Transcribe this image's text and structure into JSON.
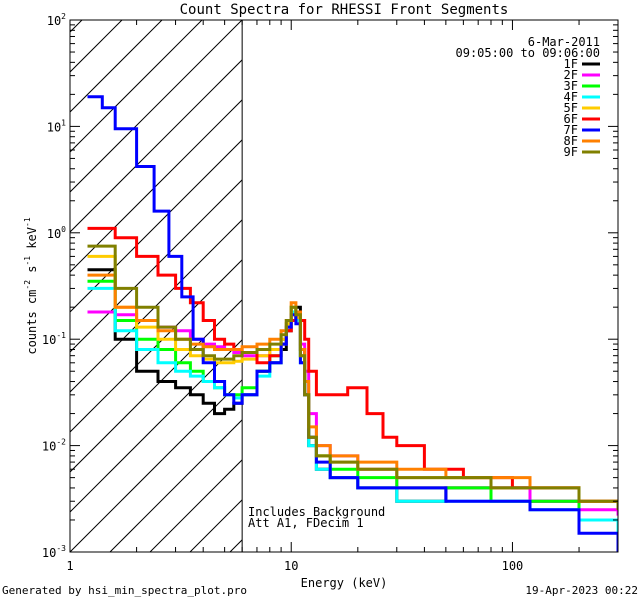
{
  "chart_data": {
    "type": "line",
    "title": "Count Spectra for RHESSI Front Segments",
    "xlabel": "Energy (keV)",
    "ylabel_parts": [
      "counts cm",
      "-2",
      " s",
      "-1",
      " keV",
      "-1"
    ],
    "xscale": "log",
    "yscale": "log",
    "xlim": [
      1,
      300
    ],
    "ylim": [
      0.001,
      100
    ],
    "x_tick_labels": [
      {
        "v": 1,
        "label": "1"
      },
      {
        "v": 10,
        "label": "10"
      },
      {
        "v": 100,
        "label": "100"
      }
    ],
    "y_tick_labels": [
      {
        "v": 0.001,
        "base": "10",
        "exp": "-3"
      },
      {
        "v": 0.01,
        "base": "10",
        "exp": "-2"
      },
      {
        "v": 0.1,
        "base": "10",
        "exp": "-1"
      },
      {
        "v": 1,
        "base": "10",
        "exp": "0"
      },
      {
        "v": 10,
        "base": "10",
        "exp": "1"
      },
      {
        "v": 100,
        "base": "10",
        "exp": "2"
      }
    ],
    "hatched_region": {
      "x_min": 1,
      "x_max": 6
    },
    "date": "6-Mar-2011",
    "time_range": "09:05:00 to 09:06:00",
    "annotation_lines": [
      "Includes Background",
      "Att A1, FDecim 1"
    ],
    "legend_position": "top-right",
    "series": [
      {
        "name": "1F",
        "color": "#000000",
        "x": [
          1.2,
          1.6,
          2.0,
          2.5,
          3.0,
          3.5,
          4.0,
          4.5,
          5.0,
          5.5,
          6.0,
          7.0,
          8.0,
          9.0,
          9.5,
          10.0,
          10.5,
          11.0,
          11.5,
          12.0,
          13,
          15,
          20,
          30,
          50,
          80,
          120,
          200,
          300
        ],
        "values": [
          0.45,
          0.1,
          0.05,
          0.04,
          0.035,
          0.03,
          0.025,
          0.02,
          0.022,
          0.025,
          0.03,
          0.05,
          0.06,
          0.08,
          0.12,
          0.15,
          0.2,
          0.08,
          0.03,
          0.01,
          0.006,
          0.005,
          0.004,
          0.003,
          0.004,
          0.004,
          0.003,
          0.002,
          0.0015
        ]
      },
      {
        "name": "2F",
        "color": "#ff00ff",
        "x": [
          1.2,
          1.6,
          2.0,
          2.5,
          3.0,
          3.5,
          4.0,
          4.5,
          5.0,
          5.5,
          6.0,
          7.0,
          8.0,
          9.0,
          9.5,
          10.0,
          10.5,
          11.0,
          11.5,
          12.0,
          13,
          15,
          20,
          30,
          50,
          80,
          120,
          200,
          300
        ],
        "values": [
          0.18,
          0.17,
          0.15,
          0.13,
          0.12,
          0.1,
          0.09,
          0.085,
          0.08,
          0.075,
          0.07,
          0.07,
          0.08,
          0.1,
          0.13,
          0.17,
          0.18,
          0.09,
          0.05,
          0.02,
          0.01,
          0.008,
          0.006,
          0.004,
          0.004,
          0.004,
          0.003,
          0.0025,
          0.0022
        ]
      },
      {
        "name": "3F",
        "color": "#00ff00",
        "x": [
          1.2,
          1.6,
          2.0,
          2.5,
          3.0,
          3.5,
          4.0,
          4.5,
          5.0,
          5.5,
          6.0,
          7.0,
          8.0,
          9.0,
          9.5,
          10.0,
          10.5,
          11.0,
          11.5,
          12.0,
          13,
          15,
          20,
          30,
          50,
          80,
          120,
          200,
          300
        ],
        "values": [
          0.35,
          0.15,
          0.1,
          0.08,
          0.06,
          0.05,
          0.04,
          0.035,
          0.03,
          0.03,
          0.035,
          0.05,
          0.07,
          0.1,
          0.14,
          0.2,
          0.16,
          0.07,
          0.03,
          0.012,
          0.008,
          0.006,
          0.005,
          0.004,
          0.004,
          0.003,
          0.003,
          0.002,
          0.0015
        ]
      },
      {
        "name": "4F",
        "color": "#00ffff",
        "x": [
          1.2,
          1.6,
          2.0,
          2.5,
          3.0,
          3.5,
          4.0,
          4.5,
          5.0,
          5.5,
          6.0,
          7.0,
          8.0,
          9.0,
          9.5,
          10.0,
          10.5,
          11.0,
          11.5,
          12.0,
          13,
          15,
          20,
          30,
          50,
          80,
          120,
          200,
          300
        ],
        "values": [
          0.3,
          0.12,
          0.08,
          0.06,
          0.05,
          0.045,
          0.04,
          0.035,
          0.03,
          0.028,
          0.03,
          0.045,
          0.06,
          0.09,
          0.13,
          0.18,
          0.15,
          0.06,
          0.03,
          0.01,
          0.006,
          0.005,
          0.004,
          0.003,
          0.003,
          0.003,
          0.0025,
          0.002,
          0.0015
        ]
      },
      {
        "name": "5F",
        "color": "#ffcc00",
        "x": [
          1.2,
          1.6,
          2.0,
          2.5,
          3.0,
          3.5,
          4.0,
          4.5,
          5.0,
          5.5,
          6.0,
          7.0,
          8.0,
          9.0,
          9.5,
          10.0,
          10.5,
          11.0,
          11.5,
          12.0,
          13,
          15,
          20,
          30,
          50,
          80,
          120,
          200,
          300
        ],
        "values": [
          0.6,
          0.2,
          0.13,
          0.1,
          0.08,
          0.07,
          0.065,
          0.06,
          0.06,
          0.062,
          0.065,
          0.07,
          0.08,
          0.1,
          0.14,
          0.2,
          0.16,
          0.07,
          0.03,
          0.012,
          0.008,
          0.007,
          0.006,
          0.005,
          0.005,
          0.004,
          0.004,
          0.003,
          0.0025
        ]
      },
      {
        "name": "6F",
        "color": "#ff0000",
        "x": [
          1.2,
          1.6,
          2.0,
          2.5,
          3.0,
          3.5,
          4.0,
          4.5,
          5.0,
          5.5,
          6.0,
          7.0,
          8.0,
          9.0,
          9.5,
          10.0,
          10.5,
          11.0,
          11.5,
          12.0,
          13,
          15,
          18,
          22,
          26,
          30,
          40,
          60,
          100,
          200,
          300
        ],
        "values": [
          1.1,
          0.9,
          0.6,
          0.4,
          0.3,
          0.22,
          0.15,
          0.1,
          0.09,
          0.08,
          0.075,
          0.06,
          0.07,
          0.09,
          0.12,
          0.15,
          0.18,
          0.15,
          0.1,
          0.05,
          0.03,
          0.03,
          0.035,
          0.02,
          0.012,
          0.01,
          0.006,
          0.005,
          0.004,
          0.003,
          0.0025
        ]
      },
      {
        "name": "7F",
        "color": "#0000ff",
        "x": [
          1.2,
          1.4,
          1.6,
          2.0,
          2.4,
          2.8,
          3.2,
          3.6,
          4.0,
          4.5,
          5.0,
          5.5,
          6.0,
          7.0,
          8.0,
          9.0,
          9.5,
          10.0,
          10.5,
          11.0,
          11.5,
          12.0,
          13,
          15,
          20,
          30,
          50,
          80,
          120,
          200,
          300
        ],
        "values": [
          19,
          15,
          9.5,
          4.2,
          1.6,
          0.6,
          0.25,
          0.1,
          0.06,
          0.04,
          0.03,
          0.025,
          0.03,
          0.05,
          0.06,
          0.09,
          0.13,
          0.17,
          0.14,
          0.06,
          0.03,
          0.012,
          0.007,
          0.005,
          0.004,
          0.004,
          0.003,
          0.003,
          0.0025,
          0.0015,
          0.001
        ]
      },
      {
        "name": "8F",
        "color": "#ff8000",
        "x": [
          1.2,
          1.6,
          2.0,
          2.5,
          3.0,
          3.5,
          4.0,
          4.5,
          5.0,
          5.5,
          6.0,
          7.0,
          8.0,
          9.0,
          9.5,
          10.0,
          10.5,
          11.0,
          11.5,
          12.0,
          13,
          15,
          20,
          30,
          50,
          80,
          120,
          200,
          300
        ],
        "values": [
          0.4,
          0.2,
          0.15,
          0.12,
          0.1,
          0.09,
          0.085,
          0.08,
          0.08,
          0.08,
          0.085,
          0.09,
          0.1,
          0.12,
          0.15,
          0.22,
          0.18,
          0.08,
          0.04,
          0.015,
          0.01,
          0.008,
          0.007,
          0.006,
          0.005,
          0.005,
          0.004,
          0.003,
          0.0025
        ]
      },
      {
        "name": "9F",
        "color": "#808000",
        "x": [
          1.2,
          1.6,
          2.0,
          2.5,
          3.0,
          3.5,
          4.0,
          4.5,
          5.0,
          5.5,
          6.0,
          7.0,
          8.0,
          9.0,
          9.5,
          10.0,
          10.5,
          11.0,
          11.5,
          12.0,
          13,
          15,
          20,
          30,
          50,
          80,
          120,
          200,
          300
        ],
        "values": [
          0.75,
          0.3,
          0.2,
          0.13,
          0.1,
          0.08,
          0.07,
          0.065,
          0.065,
          0.07,
          0.075,
          0.08,
          0.09,
          0.11,
          0.15,
          0.2,
          0.17,
          0.07,
          0.03,
          0.012,
          0.008,
          0.007,
          0.006,
          0.005,
          0.005,
          0.004,
          0.004,
          0.003,
          0.0025
        ]
      }
    ]
  },
  "footer": {
    "generated_by": "Generated by hsi_min_spectra_plot.pro",
    "timestamp": "19-Apr-2023 00:22"
  }
}
